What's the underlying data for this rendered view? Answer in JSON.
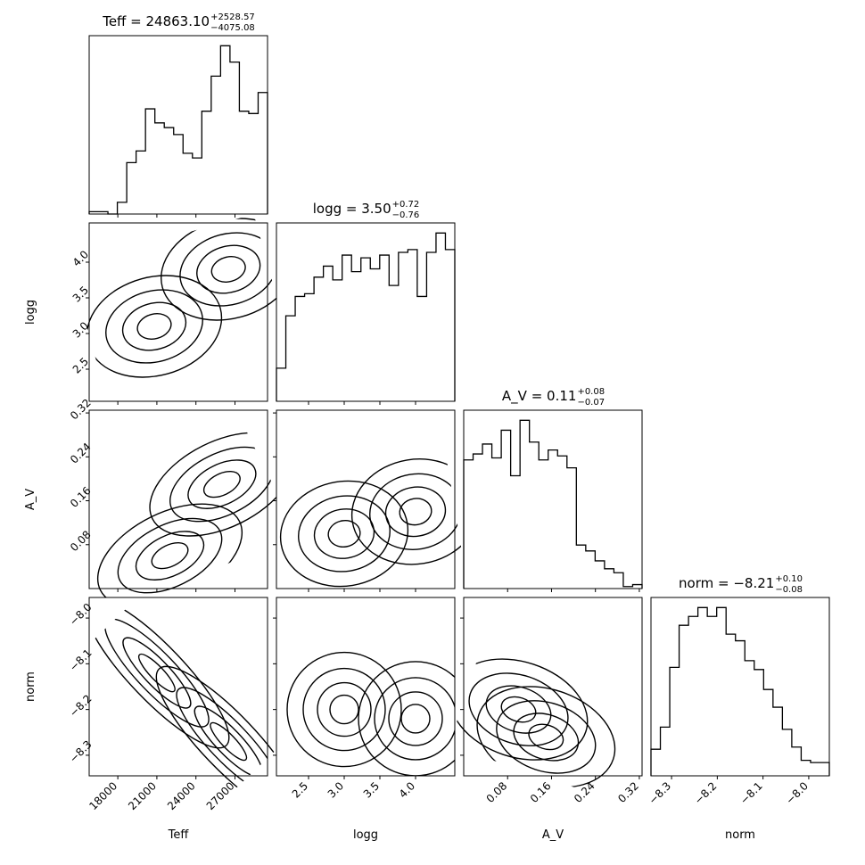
{
  "chart_data": {
    "type": "corner",
    "parameters": [
      {
        "name": "Teff",
        "title_main": "Teff = 24863.10",
        "plus": "+2528.57",
        "minus": "−4075.08",
        "range": [
          15800,
          29500
        ],
        "ticks": [
          18000,
          21000,
          24000,
          27000
        ],
        "tick_labels": [
          "18000",
          "21000",
          "24000",
          "27000"
        ]
      },
      {
        "name": "logg",
        "title_main": "logg = 3.50",
        "plus": "+0.72",
        "minus": "−0.76",
        "range": [
          2.05,
          4.55
        ],
        "ticks": [
          2.5,
          3.0,
          3.5,
          4.0
        ],
        "tick_labels": [
          "2.5",
          "3.0",
          "3.5",
          "4.0"
        ]
      },
      {
        "name": "A_V",
        "title_main": "A_V = 0.11",
        "plus": "+0.08",
        "minus": "−0.07",
        "range": [
          0.0,
          0.325
        ],
        "ticks": [
          0.08,
          0.16,
          0.24,
          0.32
        ],
        "tick_labels": [
          "0.08",
          "0.16",
          "0.24",
          "0.32"
        ]
      },
      {
        "name": "norm",
        "title_main": "norm = −8.21",
        "plus": "+0.10",
        "minus": "−0.08",
        "range": [
          -8.345,
          -7.955
        ],
        "ticks": [
          -8.3,
          -8.2,
          -8.1,
          -8.0
        ],
        "tick_labels": [
          "−8.3",
          "−8.2",
          "−8.1",
          "−8.0"
        ]
      }
    ],
    "histograms": [
      [
        1,
        1,
        0,
        5,
        22,
        27,
        45,
        39,
        37,
        34,
        26,
        24,
        44,
        59,
        72,
        65,
        44,
        43,
        52
      ],
      [
        12,
        31,
        38,
        39,
        45,
        49,
        44,
        53,
        47,
        52,
        48,
        53,
        42,
        54,
        55,
        38,
        54,
        61,
        55
      ],
      [
        65,
        68,
        73,
        66,
        80,
        57,
        85,
        74,
        65,
        70,
        67,
        61,
        22,
        19,
        14,
        10,
        8,
        1,
        2
      ],
      [
        12,
        22,
        49,
        68,
        72,
        76,
        72,
        76,
        64,
        61,
        52,
        48,
        39,
        31,
        21,
        13,
        7,
        6,
        6
      ]
    ],
    "samples_2d": [
      {
        "x": 0,
        "y": 1,
        "corr": 0.25,
        "modes": [
          [
            20800,
            3.1
          ],
          [
            26500,
            3.9
          ]
        ]
      },
      {
        "x": 0,
        "y": 2,
        "corr": 0.45,
        "modes": [
          [
            26000,
            0.19
          ],
          [
            22000,
            0.06
          ]
        ]
      },
      {
        "x": 1,
        "y": 2,
        "corr": 0.15,
        "modes": [
          [
            3.0,
            0.1
          ],
          [
            4.0,
            0.14
          ]
        ]
      },
      {
        "x": 0,
        "y": 3,
        "corr": -0.95,
        "modes": [
          [
            21000,
            -8.12
          ],
          [
            26500,
            -8.27
          ]
        ]
      },
      {
        "x": 1,
        "y": 3,
        "corr": 0.0,
        "modes": [
          [
            3.0,
            -8.2
          ],
          [
            4.0,
            -8.22
          ]
        ]
      },
      {
        "x": 2,
        "y": 3,
        "corr": -0.3,
        "modes": [
          [
            0.1,
            -8.2
          ],
          [
            0.15,
            -8.26
          ]
        ]
      }
    ],
    "axis_labels": [
      "Teff",
      "logg",
      "A_V",
      "norm"
    ]
  }
}
